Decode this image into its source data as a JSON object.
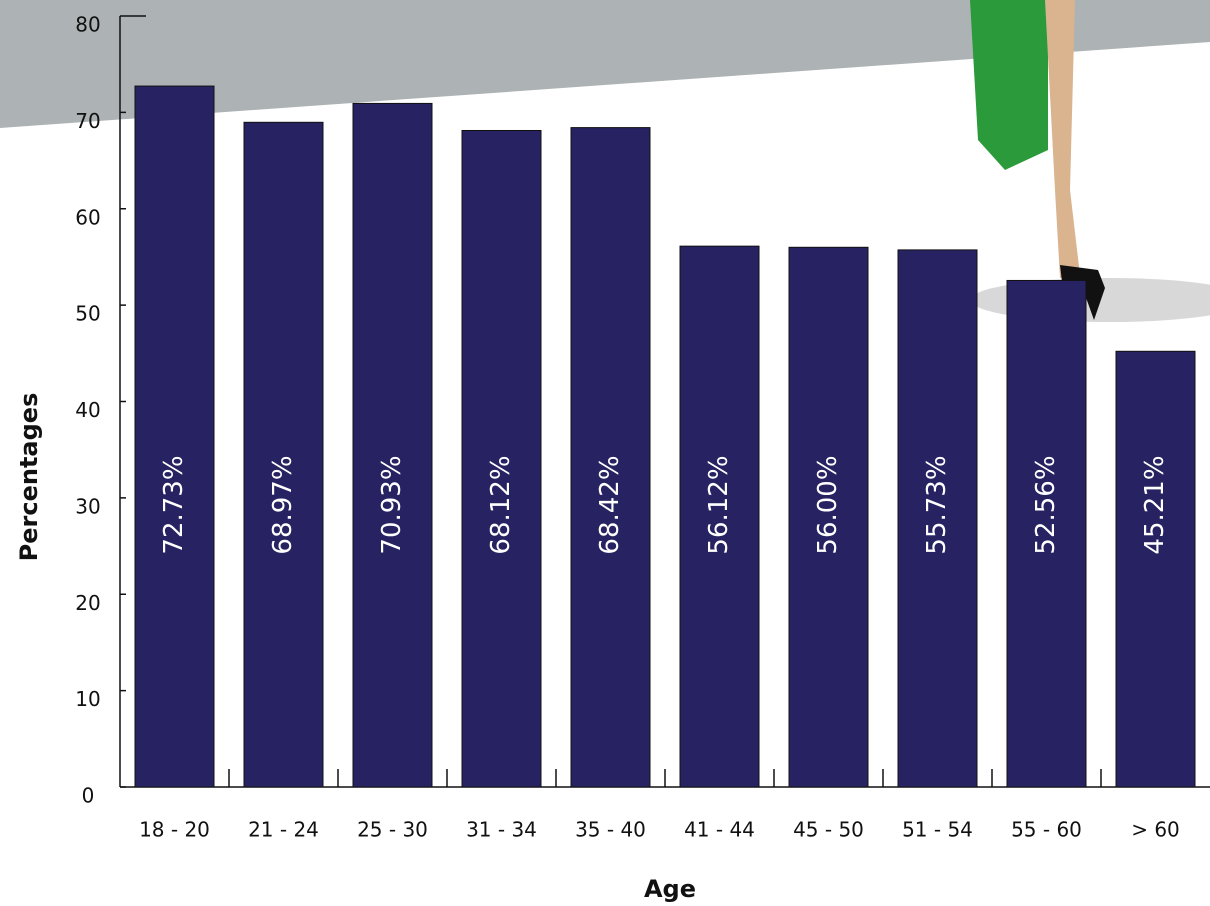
{
  "chart_data": {
    "type": "bar",
    "x_label": "Age",
    "y_label": "Percentages",
    "categories": [
      "18 - 20",
      "21 - 24",
      "25 - 30",
      "31 - 34",
      "35 - 40",
      "41 - 44",
      "45 - 50",
      "51 - 54",
      "55 - 60",
      "> 60"
    ],
    "values": [
      72.73,
      68.97,
      70.93,
      68.12,
      68.42,
      56.12,
      56.0,
      55.73,
      52.56,
      45.21
    ],
    "value_labels": [
      "72.73%",
      "68.97%",
      "70.93%",
      "68.12%",
      "68.42%",
      "56.12%",
      "56.00%",
      "55.73%",
      "52.56%",
      "45.21%"
    ],
    "color": "#272262",
    "ylim": [
      0,
      80
    ],
    "yticks": [
      0,
      10,
      20,
      30,
      40,
      50,
      60,
      70,
      80
    ]
  }
}
